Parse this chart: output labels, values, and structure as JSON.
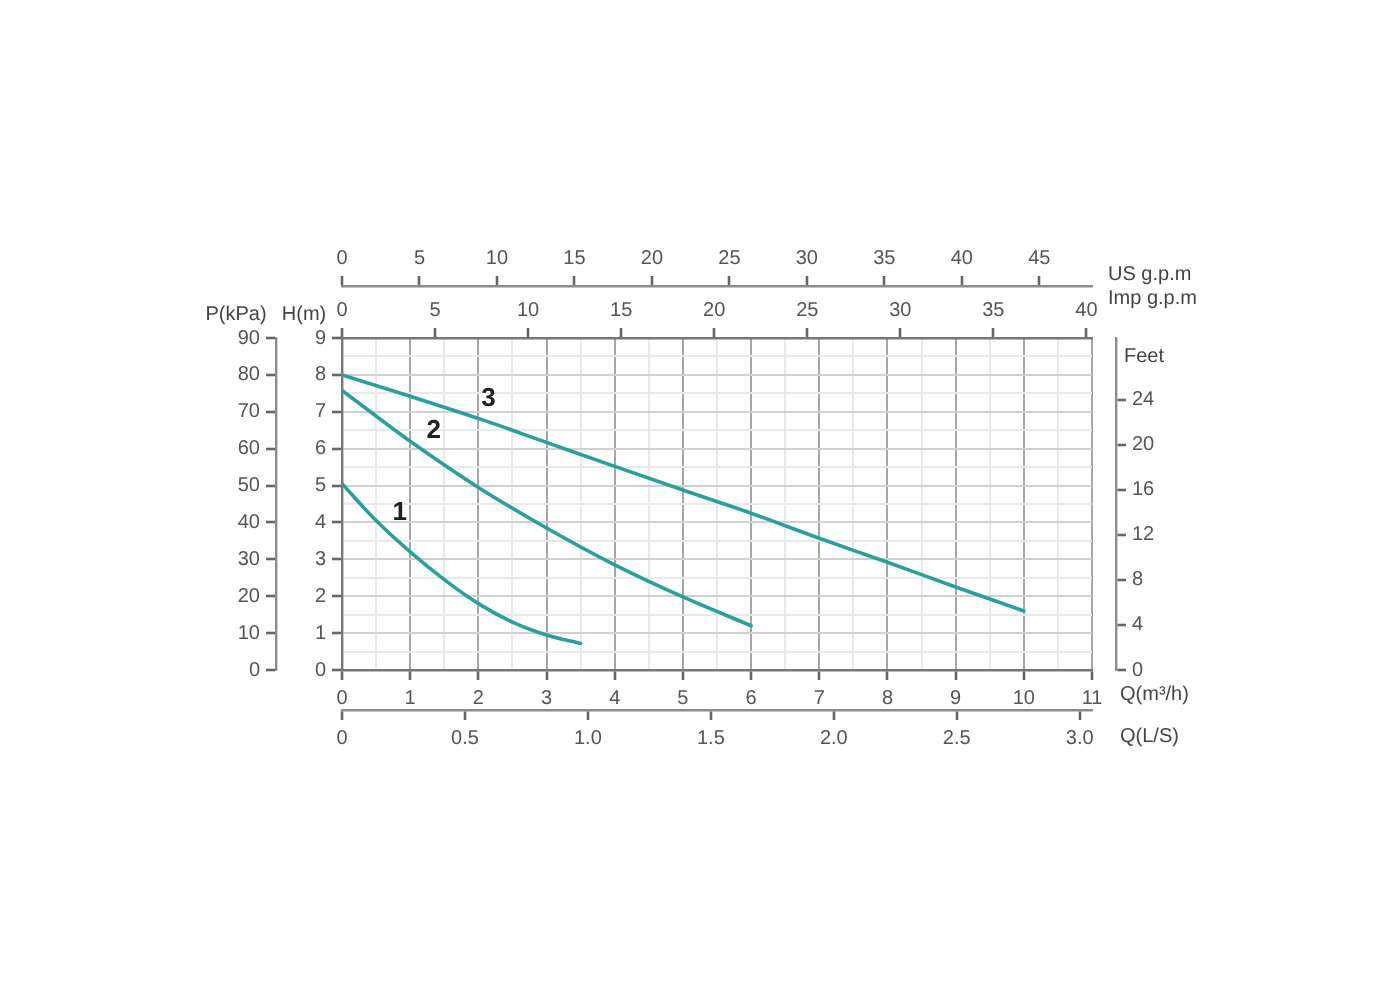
{
  "chart_data": [
    {
      "type": "line",
      "xlabel": "Q(m³/h)",
      "x2label": "Imp g.p.m",
      "ylabel": "H(m)",
      "y2label": "P(kPa)",
      "xlim": [
        0,
        11
      ],
      "xticks": [
        0,
        {
          "value": 0.5,
          "label": null
        },
        1,
        {
          "value": 1.5,
          "label": null
        },
        2,
        {
          "value": 2.5,
          "label": null
        },
        3,
        {
          "value": 3.5,
          "label": null
        },
        4,
        {
          "value": 4.5,
          "label": null
        },
        5,
        {
          "value": 5.5,
          "label": null
        },
        6,
        {
          "value": 6.5,
          "label": null
        },
        7,
        {
          "value": 7.5,
          "label": null
        },
        8,
        {
          "value": 8.5,
          "label": null
        },
        9,
        {
          "value": 9.5,
          "label": null
        },
        10,
        {
          "value": 10.5,
          "label": null
        },
        11
      ],
      "x2lim": [
        0,
        40.3
      ],
      "x2ticks": [
        0,
        5,
        10,
        15,
        20,
        25,
        30,
        35,
        40
      ],
      "ylim": [
        0,
        9
      ],
      "yticks": [
        0,
        {
          "value": 0.5,
          "label": null
        },
        1,
        {
          "value": 1.5,
          "label": null
        },
        2,
        {
          "value": 2.5,
          "label": null
        },
        3,
        {
          "value": 3.5,
          "label": null
        },
        4,
        {
          "value": 4.5,
          "label": null
        },
        5,
        {
          "value": 5.5,
          "label": null
        },
        6,
        {
          "value": 6.5,
          "label": null
        },
        7,
        {
          "value": 7.5,
          "label": null
        },
        8,
        {
          "value": 8.5,
          "label": null
        },
        9
      ],
      "y2lim": [
        0,
        90
      ],
      "y2ticks": [
        0,
        10,
        20,
        30,
        40,
        50,
        60,
        70,
        80,
        90
      ],
      "grid": true,
      "series": [
        {
          "name": "1",
          "color": "#2c9f9c",
          "x": [
            0,
            0.5,
            1,
            1.5,
            2,
            2.5,
            3,
            3.5
          ],
          "values": [
            5.05,
            4.05,
            3.2,
            2.45,
            1.8,
            1.3,
            0.95,
            0.72
          ]
        },
        {
          "name": "2",
          "color": "#2c9f9c",
          "x": [
            0,
            1,
            2,
            3,
            4,
            5,
            6
          ],
          "values": [
            7.58,
            6.2,
            4.95,
            3.85,
            2.85,
            1.98,
            1.2
          ]
        },
        {
          "name": "3",
          "color": "#2c9f9c",
          "x": [
            0,
            1,
            2,
            3,
            4,
            5,
            6,
            7,
            8,
            9,
            10
          ],
          "values": [
            8.0,
            7.42,
            6.82,
            6.17,
            5.52,
            4.88,
            4.25,
            3.57,
            2.92,
            2.25,
            1.6
          ]
        }
      ]
    },
    {
      "type": "line",
      "xlabel": "Q(L/S)",
      "x2label": "US g.p.m",
      "ylabel": "Feet",
      "xlim": [
        0,
        3.05
      ],
      "xticks": [
        0,
        0.5,
        {
          "value": 1,
          "label": "1.0"
        },
        1.5,
        {
          "value": 2,
          "label": "2.0"
        },
        2.5,
        {
          "value": 3,
          "label": "3.0"
        }
      ],
      "x2lim": [
        0,
        48.4
      ],
      "x2ticks": [
        0,
        5,
        10,
        15,
        20,
        25,
        30,
        35,
        40,
        45
      ],
      "ylim": [
        0,
        29.5
      ],
      "yticks": [
        0,
        4,
        8,
        12,
        16,
        20,
        24
      ]
    }
  ]
}
